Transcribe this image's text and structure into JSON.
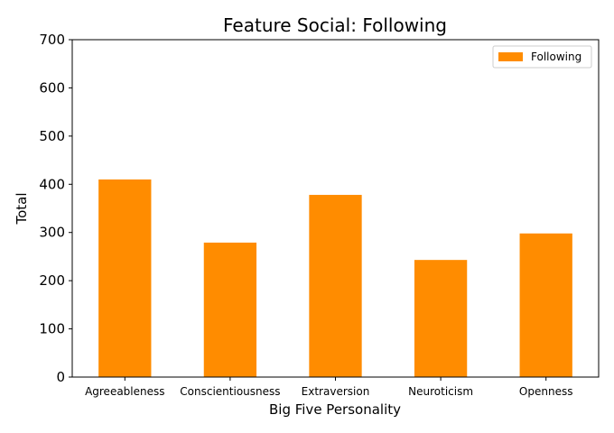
{
  "chart_data": {
    "type": "bar",
    "title": "Feature Social: Following",
    "xlabel": "Big Five Personality",
    "ylabel": "Total",
    "categories": [
      "Agreeableness",
      "Conscientiousness",
      "Extraversion",
      "Neuroticism",
      "Openness"
    ],
    "series": [
      {
        "name": "Following",
        "values": [
          410,
          279,
          378,
          243,
          298
        ],
        "color": "#ff8c00"
      }
    ],
    "ylim": [
      0,
      700
    ],
    "yticks": [
      0,
      100,
      200,
      300,
      400,
      500,
      600,
      700
    ],
    "grid": false,
    "legend_position": "top-right"
  }
}
